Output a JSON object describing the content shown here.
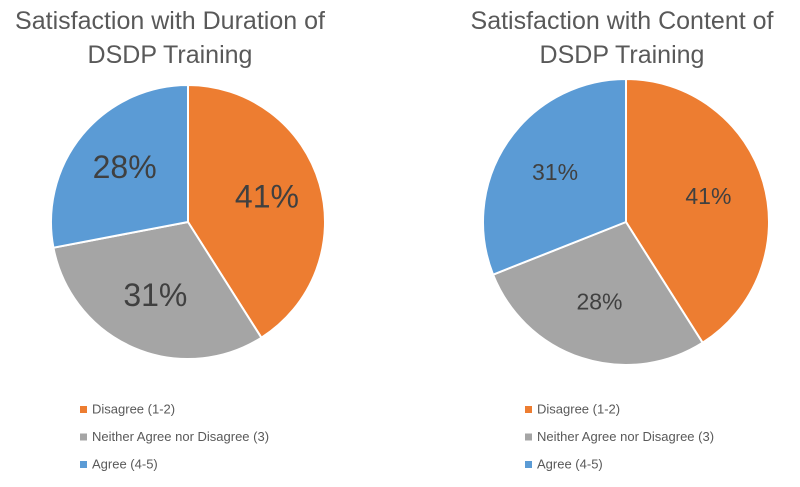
{
  "chart_data": [
    {
      "type": "pie",
      "title": "Satisfaction with Duration of DSDP Training",
      "categories": [
        "Disagree (1-2)",
        "Neither Agree nor Disagree (3)",
        "Agree (4-5)"
      ],
      "values": [
        41,
        31,
        28
      ],
      "value_labels": [
        "41%",
        "31%",
        "28%"
      ],
      "colors": [
        "#ed7d31",
        "#a5a5a5",
        "#5b9bd5"
      ]
    },
    {
      "type": "pie",
      "title": "Satisfaction with Content of DSDP Training",
      "categories": [
        "Disagree (1-2)",
        "Neither Agree nor Disagree (3)",
        "Agree (4-5)"
      ],
      "values": [
        41,
        28,
        31
      ],
      "value_labels": [
        "41%",
        "28%",
        "31%"
      ],
      "colors": [
        "#ed7d31",
        "#a5a5a5",
        "#5b9bd5"
      ]
    }
  ]
}
